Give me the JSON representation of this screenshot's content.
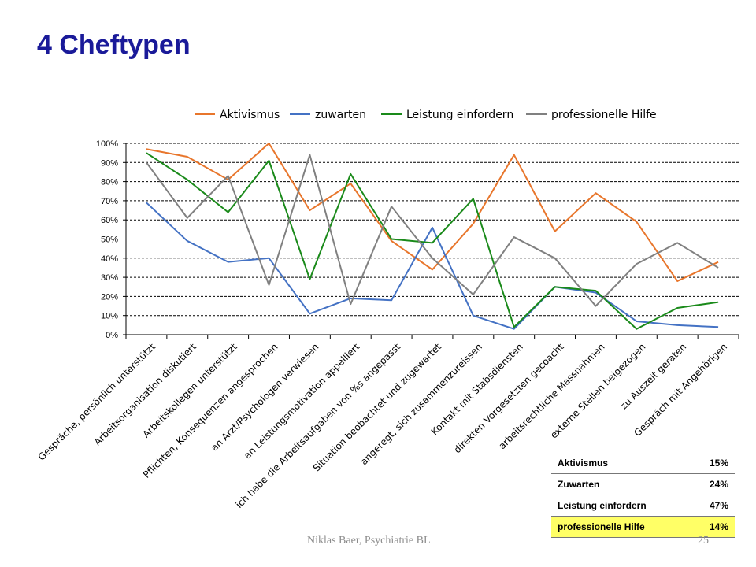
{
  "slide": {
    "title": "4 Cheftypen",
    "footer": "Niklas Baer, Psychiatrie BL",
    "page_number": "25"
  },
  "summary_table": {
    "rows": [
      {
        "label": "Aktivismus",
        "value": "15%"
      },
      {
        "label": "Zuwarten",
        "value": "24%"
      },
      {
        "label": "Leistung einfordern",
        "value": "47%"
      },
      {
        "label": "professionelle  Hilfe",
        "value": "14%"
      }
    ],
    "highlight_color": "#ffff66"
  },
  "chart_data": {
    "type": "line",
    "categories": [
      "Gespräche, persönlich unterstützt",
      "Arbeitsorganisation diskutiert",
      "Arbeitskollegen unterstützt",
      "Pflichten, Konsequenzen angesprochen",
      "an Arzt/Psychologen verwiesen",
      "an Leistungsmotivation appelliert",
      "ich habe die Arbeitsaufgaben von %s angepasst",
      "Situation beobachtet und zugewartet",
      "angeregt, sich zusammenzureissen",
      "Kontakt mit Stabsdiensten",
      "direkten Vorgesetzten gecoacht",
      "arbeitsrechtliche Massnahmen",
      "externe Stellen beigezogen",
      "zu Auszeit geraten",
      "Gespräch mit Angehörigen"
    ],
    "series": [
      {
        "name": "Aktivismus",
        "color": "#e8762c",
        "values": [
          97,
          93,
          81,
          100,
          65,
          79,
          49,
          34,
          58,
          94,
          54,
          74,
          59,
          28,
          38
        ]
      },
      {
        "name": "zuwarten",
        "color": "#4472c4",
        "values": [
          69,
          49,
          38,
          40,
          11,
          19,
          18,
          56,
          10,
          3,
          25,
          22,
          7,
          5,
          4
        ]
      },
      {
        "name": "Leistung einfordern",
        "color": "#1a8a1a",
        "values": [
          95,
          81,
          64,
          91,
          29,
          84,
          50,
          48,
          71,
          4,
          25,
          23,
          3,
          14,
          17
        ]
      },
      {
        "name": "professionelle Hilfe",
        "color": "#808080",
        "values": [
          90,
          61,
          83,
          26,
          94,
          16,
          67,
          40,
          21,
          51,
          40,
          15,
          37,
          48,
          35
        ]
      }
    ],
    "ylim": [
      0,
      100
    ],
    "yticks": [
      "0%",
      "10%",
      "20%",
      "30%",
      "40%",
      "50%",
      "60%",
      "70%",
      "80%",
      "90%",
      "100%"
    ],
    "grid": "dashed horizontal",
    "legend": "top"
  }
}
